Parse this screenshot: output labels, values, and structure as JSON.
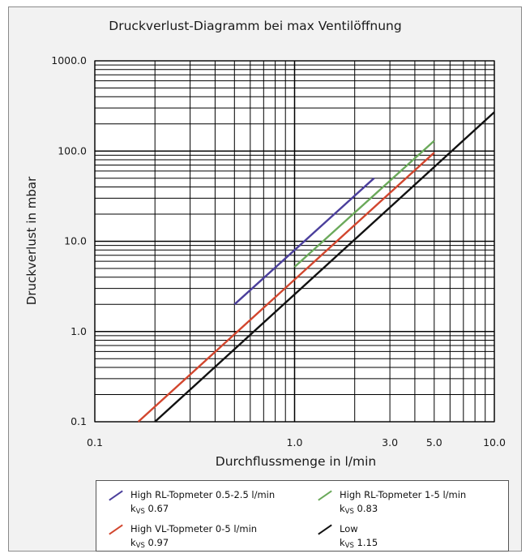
{
  "chart_data": {
    "type": "line",
    "title": "Druckverlust-Diagramm bei max Ventilöffnung",
    "xlabel": "Durchflussmenge in l/min",
    "ylabel": "Druckverlust in mbar",
    "xscale": "log",
    "yscale": "log",
    "xlim": [
      0.1,
      10
    ],
    "ylim": [
      0.1,
      1000
    ],
    "grid": true,
    "x_tick_labels": [
      {
        "value": 0.1,
        "label": "0.1"
      },
      {
        "value": 1,
        "label": "1.0"
      },
      {
        "value": 3,
        "label": "3.0"
      },
      {
        "value": 5,
        "label": "5.0"
      },
      {
        "value": 10,
        "label": "10.0"
      }
    ],
    "y_tick_labels": [
      {
        "value": 0.1,
        "label": "0.1"
      },
      {
        "value": 1,
        "label": "1.0"
      },
      {
        "value": 10,
        "label": "10.0"
      },
      {
        "value": 100,
        "label": "100.0"
      },
      {
        "value": 1000,
        "label": "1000.0"
      }
    ],
    "series": [
      {
        "name": "High RL-Topmeter 0.5-2.5 l/min",
        "kvs_label": "k",
        "kvs_sub": "VS",
        "kvs_value": "0.67",
        "color": "#4b3f9c",
        "x": [
          0.5,
          2.5
        ],
        "y": [
          2.0,
          50
        ]
      },
      {
        "name": "High RL-Topmeter 1-5 l/min",
        "kvs_label": "k",
        "kvs_sub": "VS",
        "kvs_value": "0.83",
        "color": "#6aa95a",
        "x": [
          1.0,
          5.0
        ],
        "y": [
          5.2,
          130
        ]
      },
      {
        "name": "High VL-Topmeter 0-5 l/min",
        "kvs_label": "k",
        "kvs_sub": "VS",
        "kvs_value": "0.97",
        "color": "#d2462e",
        "x": [
          0.165,
          5.0
        ],
        "y": [
          0.1,
          96
        ]
      },
      {
        "name": "Low",
        "kvs_label": "k",
        "kvs_sub": "VS",
        "kvs_value": "1.15",
        "color": "#111111",
        "x": [
          0.2,
          10.0
        ],
        "y": [
          0.1,
          270
        ]
      }
    ],
    "legend_position": "bottom"
  }
}
